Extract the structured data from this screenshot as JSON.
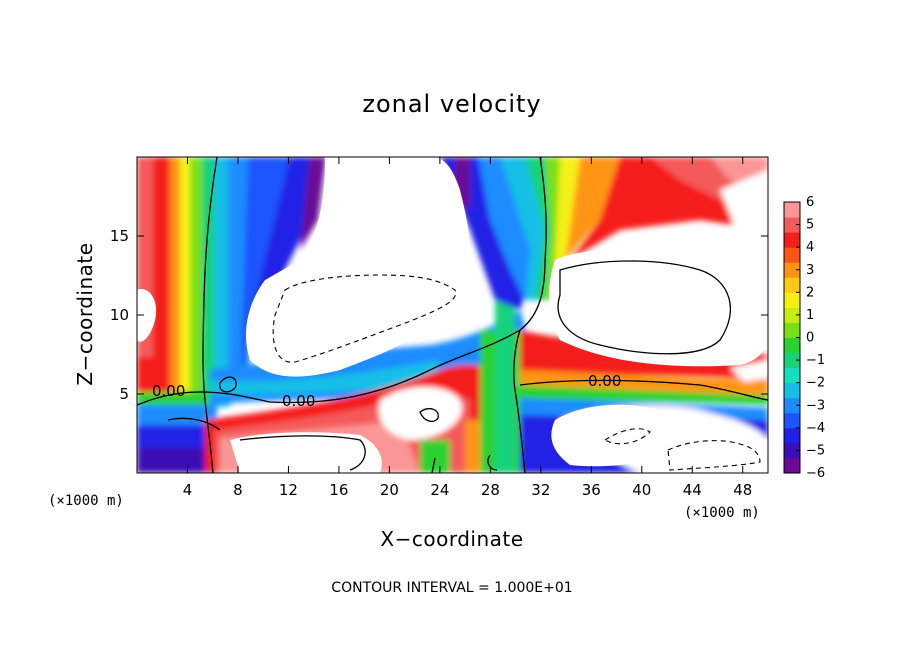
{
  "chart_data": {
    "type": "heatmap",
    "title": "zonal velocity",
    "xlabel": "X−coordinate",
    "ylabel": "Z−coordinate",
    "x_unit": "(×1000 m)",
    "z_unit": "(×1000 m)",
    "xlim": [
      0,
      50
    ],
    "ylim": [
      0,
      20
    ],
    "x_ticks": [
      4,
      8,
      12,
      16,
      20,
      24,
      28,
      32,
      36,
      40,
      44,
      48
    ],
    "y_ticks": [
      5,
      10,
      15
    ],
    "colorbar": {
      "min": -6,
      "max": 6,
      "ticks": [
        "6",
        "5",
        "4",
        "3",
        "2",
        "1",
        "0",
        "−1",
        "−2",
        "−3",
        "−4",
        "−5",
        "−6"
      ],
      "colors": [
        "#6a0a96",
        "#3b0fb3",
        "#2020e6",
        "#1a55ff",
        "#1d8cff",
        "#14bfe6",
        "#14e0c0",
        "#16d27a",
        "#2ad232",
        "#7ae016",
        "#c8ec14",
        "#f5f014",
        "#ffc814",
        "#ff9414",
        "#ff5514",
        "#f51e1e",
        "#f55a5a",
        "#fa9696"
      ]
    },
    "contour_labels": [
      "0.00",
      "0.00",
      "0.00"
    ],
    "contour_interval": "CONTOUR INTERVAL = 1.000E+01"
  }
}
